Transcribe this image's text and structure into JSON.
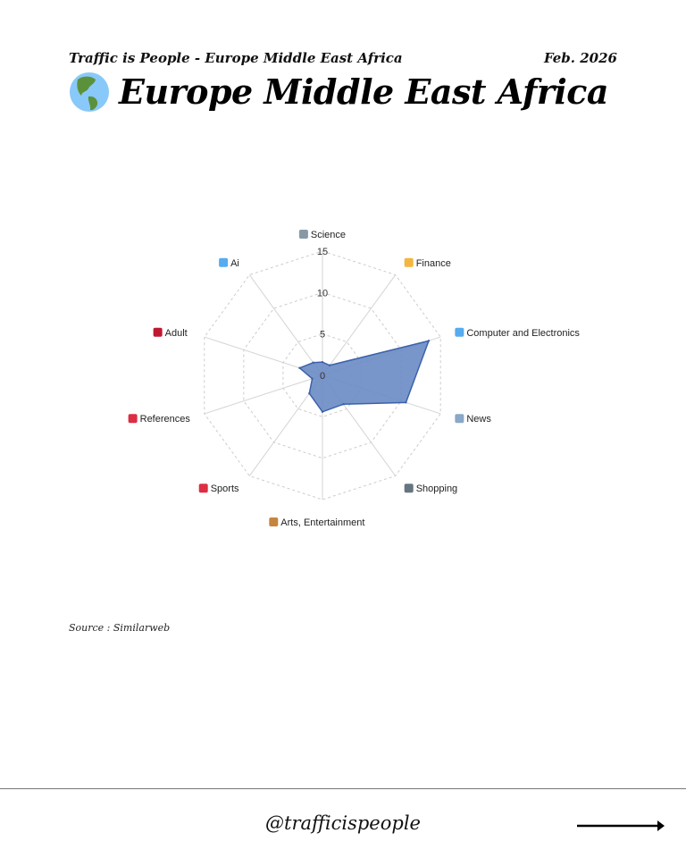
{
  "header": {
    "subtitle": "Traffic is People - Europe Middle East Africa",
    "date": "Feb. 2026",
    "title": "Europe Middle East Africa",
    "title_icon": "globe-americas-icon"
  },
  "chart_data": {
    "type": "radar",
    "categories": [
      "Science",
      "Finance",
      "Computer and Electronics",
      "News",
      "Shopping",
      "Arts, Entertainment",
      "Sports",
      "References",
      "Adult",
      "Ai"
    ],
    "category_icons": [
      "microscope-icon",
      "money-bag-icon",
      "laptop-icon",
      "newspaper-icon",
      "shopping-cart-icon",
      "artist-icon",
      "cyclist-icon",
      "bookmark-icon",
      "no-under-18-icon",
      "robot-icon"
    ],
    "values": [
      1.6,
      1.5,
      13.5,
      10.6,
      4.3,
      4.4,
      2.7,
      1.3,
      2.9,
      1.9
    ],
    "rlim": [
      0,
      15
    ],
    "ticks": [
      0,
      5,
      10,
      15
    ],
    "tick_labels": [
      "0",
      "5",
      "10",
      "15"
    ],
    "grid": true,
    "fill_color": "#6a8bc4",
    "line_color": "#3a62aa"
  },
  "footer": {
    "source": "Source : Similarweb",
    "handle": "@trafficispeople",
    "next_icon": "arrow-right-icon"
  }
}
